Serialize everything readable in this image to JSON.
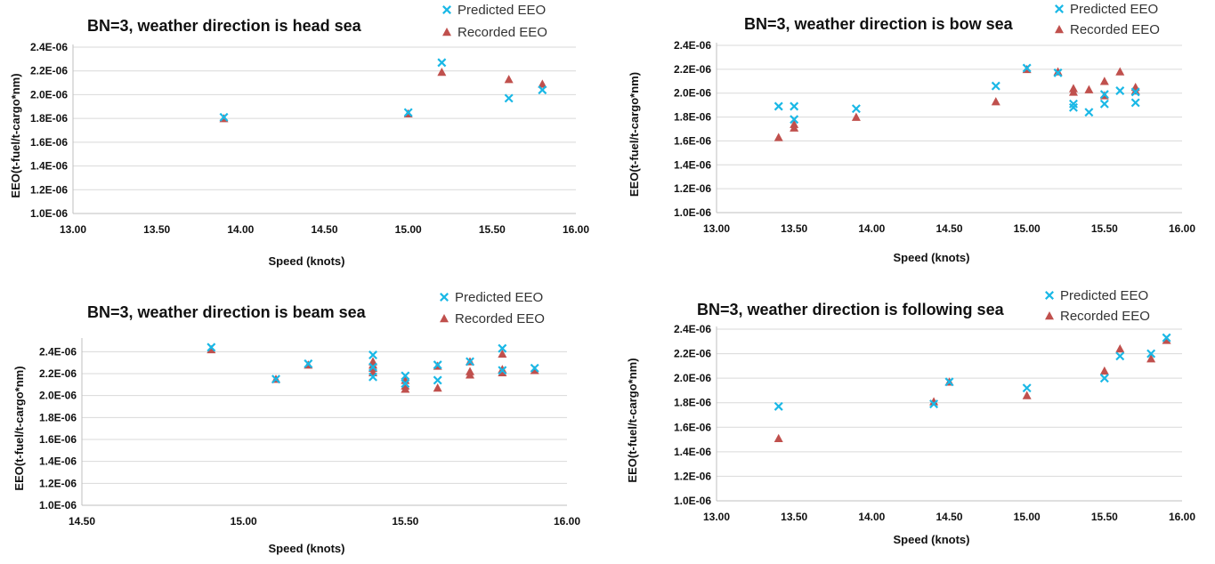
{
  "legend": {
    "predicted": "Predicted EEO",
    "recorded": "Recorded EEO"
  },
  "colors": {
    "predicted": "#1ab8e6",
    "recorded": "#c0504d"
  },
  "chart_data": [
    {
      "type": "scatter",
      "title": "BN=3,  weather direction is head sea",
      "xlabel": "Speed (knots)",
      "ylabel": "EEO(t-fuel/t-cargo*nm)",
      "xlim": [
        13.0,
        16.0
      ],
      "ylim": [
        1e-06,
        2.4e-06
      ],
      "xticks": [
        "13.00",
        "13.50",
        "14.00",
        "14.50",
        "15.00",
        "15.50",
        "16.00"
      ],
      "yticks": [
        "1.0E-06",
        "1.2E-06",
        "1.4E-06",
        "1.6E-06",
        "1.8E-06",
        "2.0E-06",
        "2.2E-06",
        "2.4E-06"
      ],
      "grid": true,
      "legend_position": "top-right",
      "series": [
        {
          "name": "Predicted EEO",
          "marker": "x",
          "x": [
            13.9,
            15.0,
            15.2,
            15.6,
            15.8
          ],
          "y": [
            1.81e-06,
            1.85e-06,
            2.27e-06,
            1.97e-06,
            2.04e-06
          ]
        },
        {
          "name": "Recorded EEO",
          "marker": "triangle",
          "x": [
            13.9,
            15.0,
            15.2,
            15.6,
            15.8
          ],
          "y": [
            1.8e-06,
            1.84e-06,
            2.19e-06,
            2.13e-06,
            2.09e-06
          ]
        }
      ]
    },
    {
      "type": "scatter",
      "title": "BN=3,  weather direction is bow sea",
      "xlabel": "Speed (knots)",
      "ylabel": "EEO(t-fuel/t-cargo*nm)",
      "xlim": [
        13.0,
        16.0
      ],
      "ylim": [
        1e-06,
        2.4e-06
      ],
      "xticks": [
        "13.00",
        "13.50",
        "14.00",
        "14.50",
        "15.00",
        "15.50",
        "16.00"
      ],
      "yticks": [
        "1.0E-06",
        "1.2E-06",
        "1.4E-06",
        "1.6E-06",
        "1.8E-06",
        "2.0E-06",
        "2.2E-06",
        "2.4E-06"
      ],
      "grid": true,
      "legend_position": "top-right",
      "series": [
        {
          "name": "Predicted EEO",
          "marker": "x",
          "x": [
            13.4,
            13.5,
            13.5,
            13.9,
            14.8,
            15.0,
            15.2,
            15.3,
            15.3,
            15.4,
            15.5,
            15.5,
            15.6,
            15.7,
            15.7
          ],
          "y": [
            1.89e-06,
            1.89e-06,
            1.78e-06,
            1.87e-06,
            2.06e-06,
            2.21e-06,
            2.17e-06,
            1.91e-06,
            1.88e-06,
            1.84e-06,
            1.91e-06,
            1.99e-06,
            2.02e-06,
            1.92e-06,
            2.01e-06
          ]
        },
        {
          "name": "Recorded EEO",
          "marker": "triangle",
          "x": [
            13.4,
            13.5,
            13.5,
            13.9,
            14.8,
            15.0,
            15.2,
            15.3,
            15.3,
            15.4,
            15.5,
            15.5,
            15.6,
            15.7,
            15.7
          ],
          "y": [
            1.63e-06,
            1.74e-06,
            1.71e-06,
            1.8e-06,
            1.93e-06,
            2.2e-06,
            2.18e-06,
            2.04e-06,
            2.01e-06,
            2.03e-06,
            2.1e-06,
            1.98e-06,
            2.18e-06,
            2.05e-06,
            2.02e-06
          ]
        }
      ]
    },
    {
      "type": "scatter",
      "title": "BN=3,  weather direction is beam sea",
      "xlabel": "Speed (knots)",
      "ylabel": "EEO(t-fuel/t-cargo*nm)",
      "xlim": [
        14.5,
        16.0
      ],
      "ylim": [
        1e-06,
        2.5e-06
      ],
      "xticks": [
        "14.50",
        "15.00",
        "15.50",
        "16.00"
      ],
      "yticks": [
        "1.0E-06",
        "1.2E-06",
        "1.4E-06",
        "1.6E-06",
        "1.8E-06",
        "2.0E-06",
        "2.2E-06",
        "2.4E-06"
      ],
      "grid": true,
      "legend_position": "top-right",
      "series": [
        {
          "name": "Predicted EEO",
          "marker": "x",
          "x": [
            14.9,
            15.1,
            15.2,
            15.4,
            15.4,
            15.4,
            15.5,
            15.5,
            15.6,
            15.6,
            15.7,
            15.8,
            15.8,
            15.9
          ],
          "y": [
            2.44e-06,
            2.15e-06,
            2.29e-06,
            2.37e-06,
            2.26e-06,
            2.17e-06,
            2.18e-06,
            2.11e-06,
            2.14e-06,
            2.28e-06,
            2.31e-06,
            2.43e-06,
            2.23e-06,
            2.25e-06
          ]
        },
        {
          "name": "Recorded EEO",
          "marker": "triangle",
          "x": [
            14.9,
            15.1,
            15.2,
            15.4,
            15.4,
            15.4,
            15.4,
            15.5,
            15.5,
            15.5,
            15.6,
            15.6,
            15.7,
            15.7,
            15.7,
            15.8,
            15.8,
            15.8,
            15.9
          ],
          "y": [
            2.42e-06,
            2.15e-06,
            2.28e-06,
            2.31e-06,
            2.28e-06,
            2.25e-06,
            2.21e-06,
            2.14e-06,
            2.09e-06,
            2.06e-06,
            2.27e-06,
            2.07e-06,
            2.31e-06,
            2.22e-06,
            2.19e-06,
            2.38e-06,
            2.24e-06,
            2.21e-06,
            2.23e-06
          ]
        }
      ]
    },
    {
      "type": "scatter",
      "title": "BN=3,  weather direction is following sea",
      "xlabel": "Speed (knots)",
      "ylabel": "EEO(t-fuel/t-cargo*nm)",
      "xlim": [
        13.0,
        16.0
      ],
      "ylim": [
        1e-06,
        2.4e-06
      ],
      "xticks": [
        "13.00",
        "13.50",
        "14.00",
        "14.50",
        "15.00",
        "15.50",
        "16.00"
      ],
      "yticks": [
        "1.0E-06",
        "1.2E-06",
        "1.4E-06",
        "1.6E-06",
        "1.8E-06",
        "2.0E-06",
        "2.2E-06",
        "2.4E-06"
      ],
      "grid": true,
      "legend_position": "top-right",
      "series": [
        {
          "name": "Predicted EEO",
          "marker": "x",
          "x": [
            13.4,
            14.4,
            14.5,
            15.0,
            15.5,
            15.6,
            15.8,
            15.9
          ],
          "y": [
            1.77e-06,
            1.79e-06,
            1.97e-06,
            1.92e-06,
            2e-06,
            2.18e-06,
            2.2e-06,
            2.33e-06
          ]
        },
        {
          "name": "Recorded EEO",
          "marker": "triangle",
          "x": [
            13.4,
            14.4,
            14.5,
            15.0,
            15.5,
            15.6,
            15.8,
            15.9
          ],
          "y": [
            1.51e-06,
            1.81e-06,
            1.97e-06,
            1.86e-06,
            2.06e-06,
            2.24e-06,
            2.16e-06,
            2.31e-06
          ]
        }
      ]
    }
  ]
}
